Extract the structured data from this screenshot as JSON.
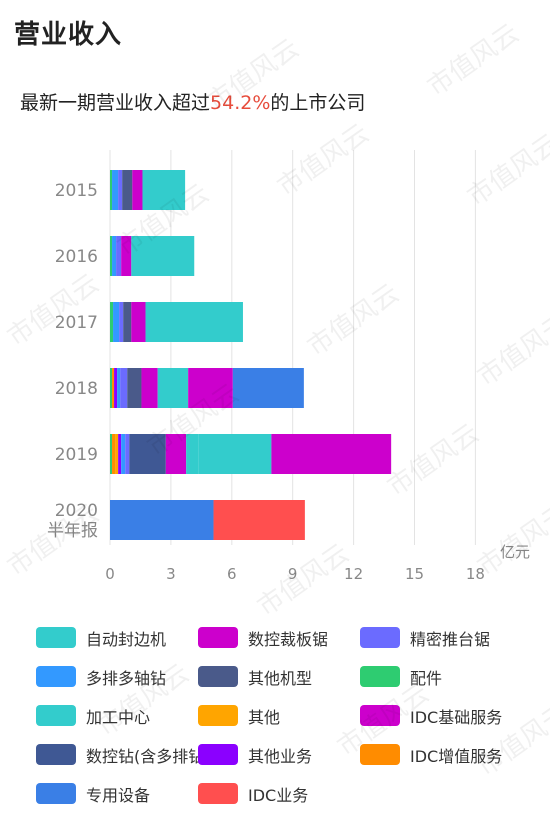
{
  "header": {
    "section_title": "营业收入",
    "subtitle_prefix": "最新一期营业收入超过",
    "subtitle_highlight": "54.2%",
    "subtitle_suffix": "的上市公司",
    "highlight_color": "#e74c3c"
  },
  "watermark_text": "市值风云",
  "chart_data": {
    "type": "bar",
    "orientation": "horizontal",
    "stacked": true,
    "categories": [
      "2015",
      "2016",
      "2017",
      "2018",
      "2019",
      "2020\n半年报"
    ],
    "xlim": [
      0,
      18
    ],
    "xticks": [
      0,
      3,
      6,
      9,
      12,
      15,
      18
    ],
    "tick_labels": [
      "0",
      "3",
      "6",
      "9",
      "12",
      "15",
      "18"
    ],
    "unit_label": "亿元",
    "grid": true,
    "legend_position": "bottom",
    "series": [
      {
        "name": "配件",
        "color": "#2ecc71",
        "values": [
          0.1,
          0.1,
          0.15,
          0.1,
          0.1,
          0
        ]
      },
      {
        "name": "IDC增值服务",
        "color": "#ff8c00",
        "values": [
          0,
          0,
          0,
          0.1,
          0.15,
          0
        ]
      },
      {
        "name": "其他",
        "color": "#ffa500",
        "values": [
          0,
          0,
          0,
          0,
          0.15,
          0
        ]
      },
      {
        "name": "其他业务",
        "color": "#8b00ff",
        "values": [
          0,
          0,
          0,
          0.15,
          0.15,
          0
        ]
      },
      {
        "name": "多排多轴钻",
        "color": "#3399ff",
        "values": [
          0.3,
          0.2,
          0.3,
          0.15,
          0.2,
          0
        ]
      },
      {
        "name": "精密推台锯",
        "color": "#6b6bff",
        "values": [
          0.2,
          0.25,
          0.2,
          0.35,
          0.2,
          0
        ]
      },
      {
        "name": "其他机型",
        "color": "#4a5a8a",
        "values": [
          0.5,
          0,
          0.4,
          0.7,
          0,
          0
        ]
      },
      {
        "name": "数控钻(含多排钻)",
        "color": "#3f5894",
        "values": [
          0,
          0,
          0,
          0,
          1.8,
          0
        ]
      },
      {
        "name": "数控裁板锯",
        "color": "#cc00cc",
        "values": [
          0.5,
          0.5,
          0.7,
          0.8,
          1.0,
          0
        ]
      },
      {
        "name": "加工中心",
        "color": "#33cccc",
        "values": [
          0,
          0,
          0,
          0,
          0.6,
          0
        ]
      },
      {
        "name": "自动封边机",
        "color": "#33cccc",
        "values": [
          2.1,
          3.1,
          4.8,
          1.5,
          3.6,
          0
        ]
      },
      {
        "name": "IDC基础服务",
        "color": "#cc00cc",
        "values": [
          0,
          0,
          0,
          2.2,
          5.9,
          0
        ]
      },
      {
        "name": "专用设备",
        "color": "#3a7fe6",
        "values": [
          0,
          0,
          0,
          3.5,
          0,
          5.1
        ]
      },
      {
        "name": "IDC业务",
        "color": "#ff4f4f",
        "values": [
          0,
          0,
          0,
          0,
          0,
          4.5
        ]
      }
    ]
  },
  "legend": [
    {
      "label": "自动封边机",
      "color": "#33cccc"
    },
    {
      "label": "数控裁板锯",
      "color": "#cc00cc"
    },
    {
      "label": "精密推台锯",
      "color": "#6b6bff"
    },
    {
      "label": "多排多轴钻",
      "color": "#3399ff"
    },
    {
      "label": "其他机型",
      "color": "#4a5a8a"
    },
    {
      "label": "配件",
      "color": "#2ecc71"
    },
    {
      "label": "加工中心",
      "color": "#33cccc"
    },
    {
      "label": "其他",
      "color": "#ffa500"
    },
    {
      "label": "IDC基础服务",
      "color": "#cc00cc"
    },
    {
      "label": "数控钻(含多排钻)",
      "color": "#3f5894"
    },
    {
      "label": "其他业务",
      "color": "#8b00ff"
    },
    {
      "label": "IDC增值服务",
      "color": "#ff8c00"
    },
    {
      "label": "专用设备",
      "color": "#3a7fe6"
    },
    {
      "label": "IDC业务",
      "color": "#ff4f4f"
    }
  ]
}
